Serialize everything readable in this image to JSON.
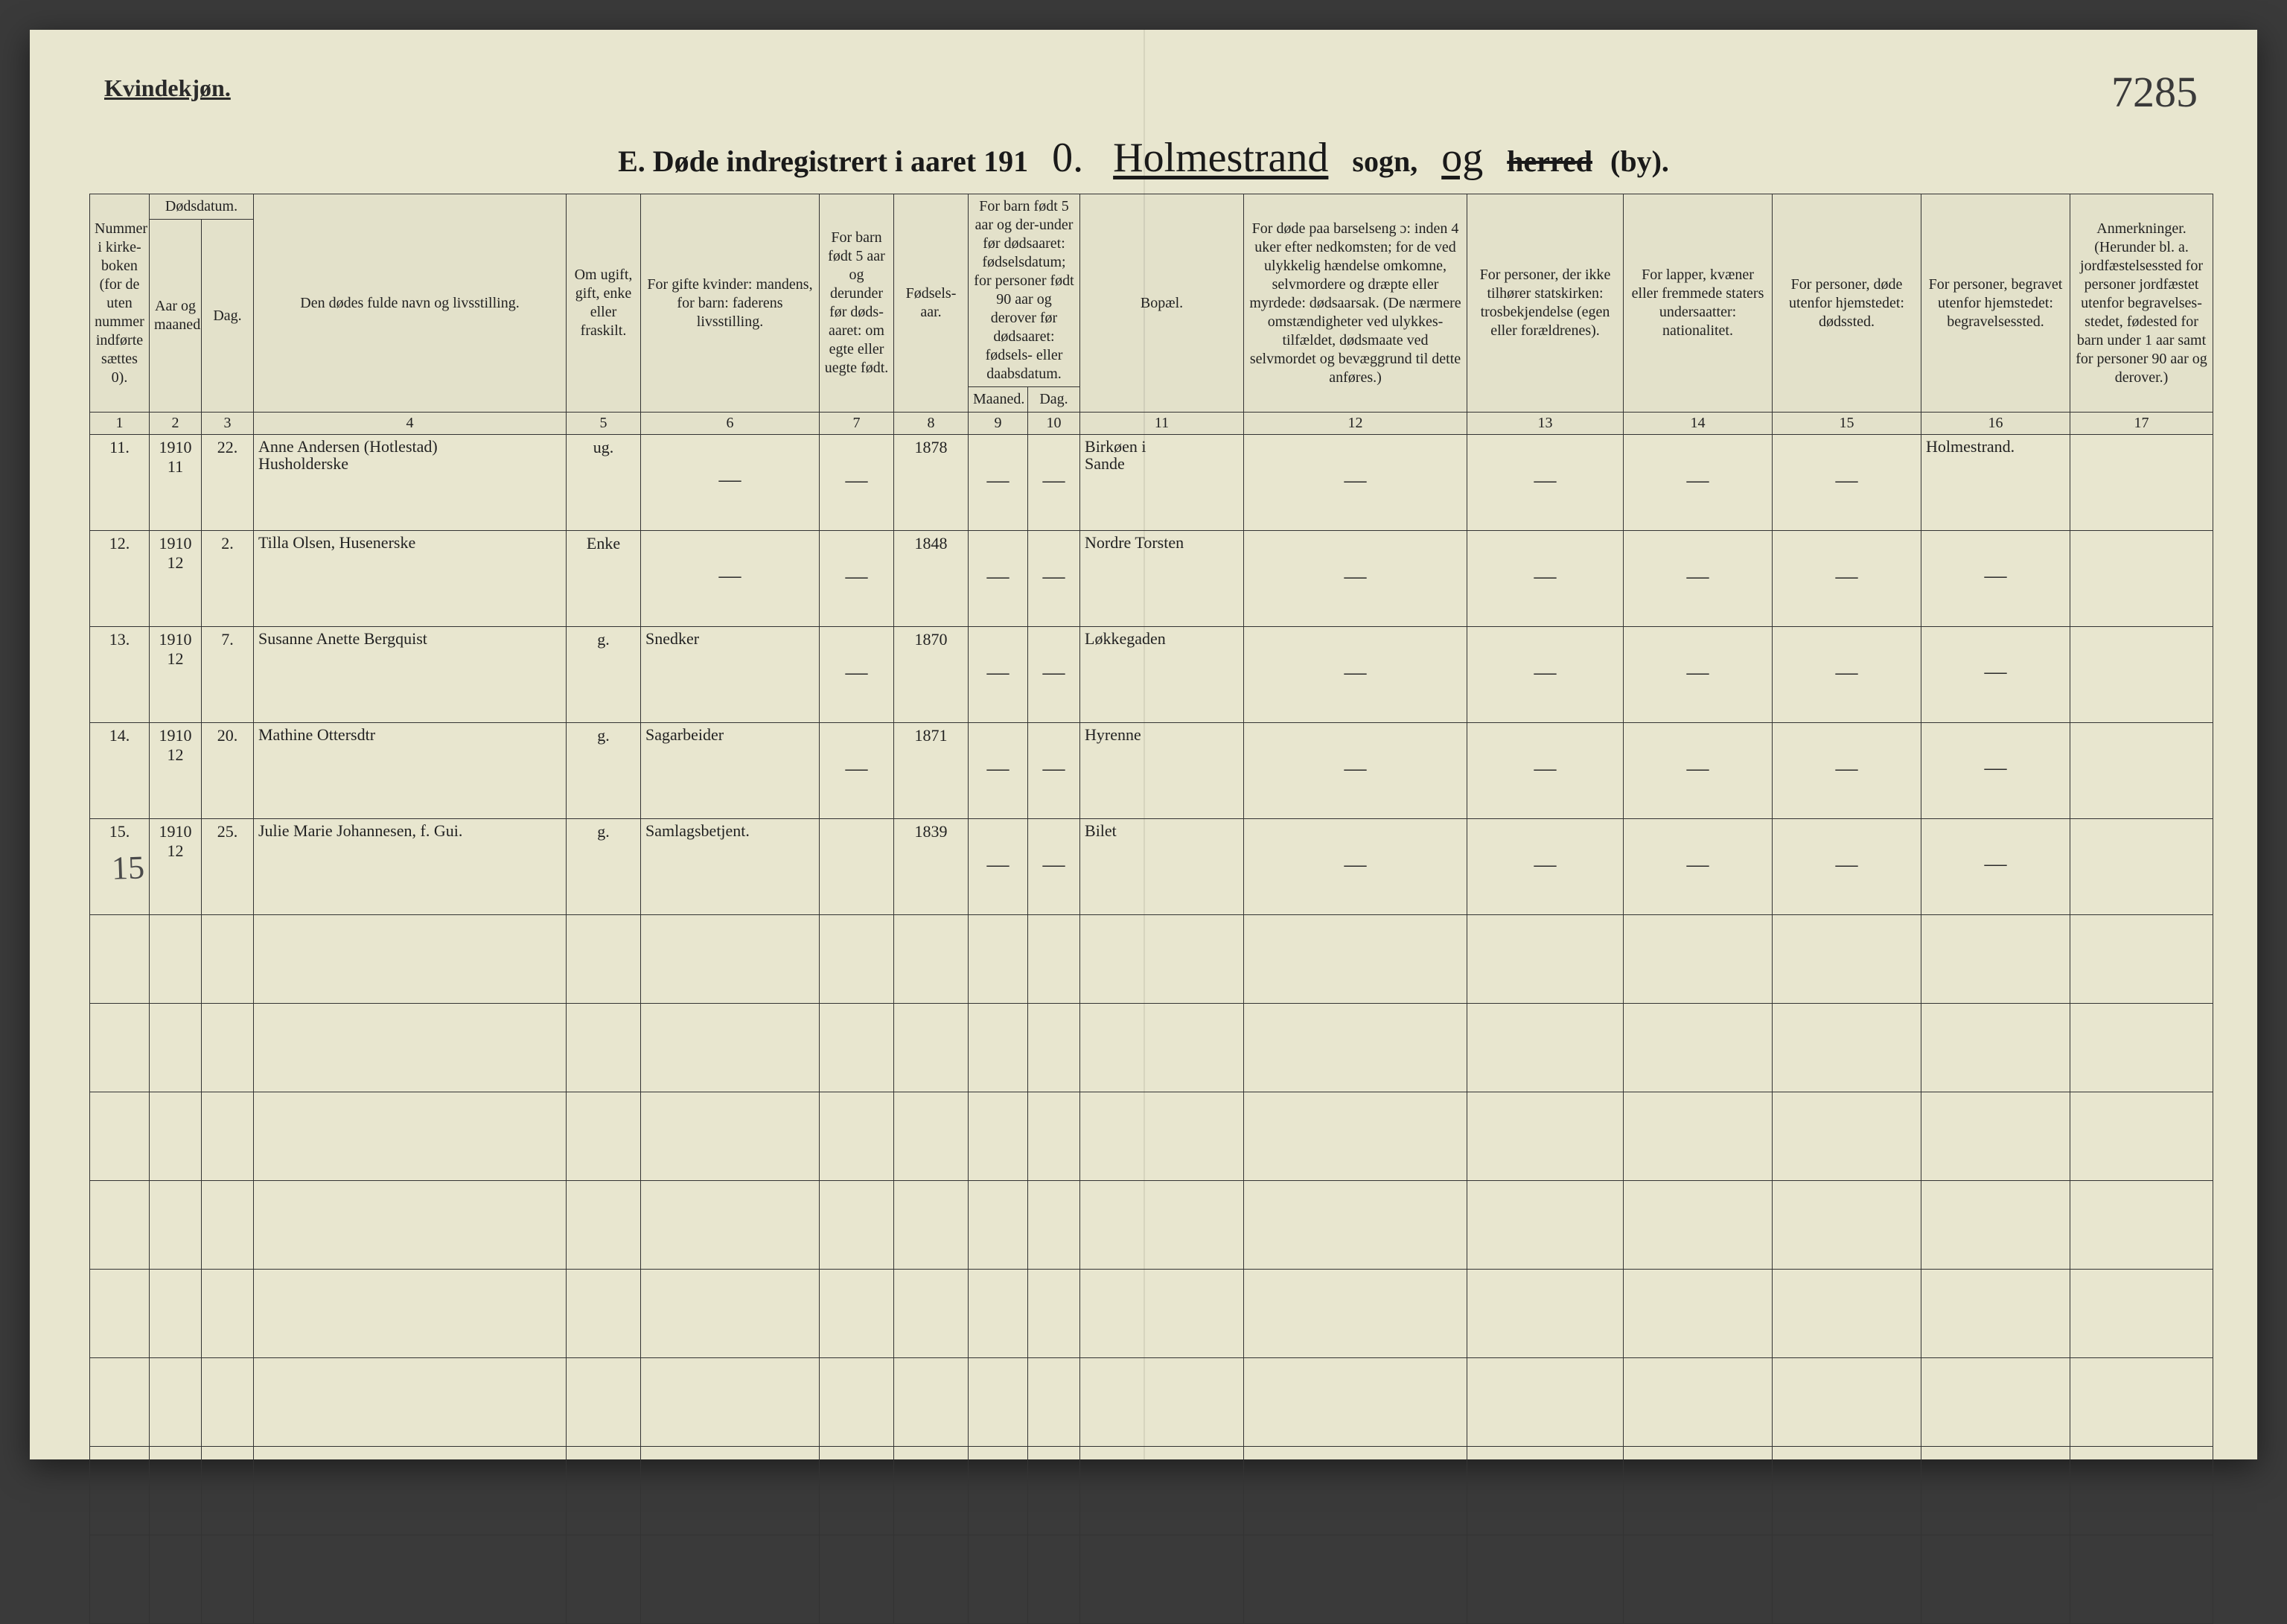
{
  "header": {
    "gender_heading": "Kvindekjøn.",
    "page_number_hand": "7285",
    "title_prefix": "E.   Døde indregistrert i aaret 191",
    "year_hand": "0.",
    "sogn_hand": "Holmestrand",
    "sogn_label": "sogn,",
    "og_hand": "og",
    "herred_label": "herred",
    "by_label": "(by)."
  },
  "column_headers": {
    "c1": "Nummer i kirke-boken (for de uten nummer indførte sættes 0).",
    "c2_group": "Dødsdatum.",
    "c2": "Aar og maaned.",
    "c3": "Dag.",
    "c4": "Den dødes fulde navn og livsstilling.",
    "c5": "Om ugift, gift, enke eller fraskilt.",
    "c6": "For gifte kvinder: mandens,\nfor barn: faderens livsstilling.",
    "c7": "For barn født 5 aar og derunder før døds-aaret: om egte eller uegte født.",
    "c8": "Fødsels-aar.",
    "c9_10_group": "For barn født 5 aar og der-under før dødsaaret: fødselsdatum; for personer født 90 aar og derover før dødsaaret: fødsels- eller daabsdatum.",
    "c9": "Maaned.",
    "c10": "Dag.",
    "c11": "Bopæl.",
    "c12": "For døde paa barselseng ɔ: inden 4 uker efter nedkomsten; for de ved ulykkelig hændelse omkomne, selvmordere og dræpte eller myrdede: dødsaarsak. (De nærmere omstændigheter ved ulykkes-tilfældet, dødsmaate ved selvmordet og bevæggrund til dette anføres.)",
    "c13": "For personer, der ikke tilhører statskirken: trosbekjendelse (egen eller forældrenes).",
    "c14": "For lapper, kvæner eller fremmede staters undersaatter: nationalitet.",
    "c15": "For personer, døde utenfor hjemstedet: dødssted.",
    "c16": "For personer, begravet utenfor hjemstedet: begravelsessted.",
    "c17": "Anmerkninger. (Herunder bl. a. jordfæstelsessted for personer jordfæstet utenfor begravelses-stedet, fødested for barn under 1 aar samt for personer 90 aar og derover.)"
  },
  "column_numbers": [
    "1",
    "2",
    "3",
    "4",
    "5",
    "6",
    "7",
    "8",
    "9",
    "10",
    "11",
    "12",
    "13",
    "14",
    "15",
    "16",
    "17"
  ],
  "rows": [
    {
      "num": "11.",
      "year_month": "1910\n11",
      "day": "22.",
      "name": "Anne Andersen (Hotlestad)\nHusholderske",
      "status": "ug.",
      "spouse": "—",
      "legit": "–",
      "birth_year": "1878",
      "bm": "–",
      "bd": "–",
      "residence": "Birkøen i\nSande",
      "col16": "Holmestrand."
    },
    {
      "num": "12.",
      "year_month": "1910\n12",
      "day": "2.",
      "name": "Tilla Olsen, Husenerske",
      "status": "Enke",
      "spouse": "—",
      "legit": "–",
      "birth_year": "1848",
      "bm": "–",
      "bd": "–",
      "residence": "Nordre Torsten",
      "col16": "—"
    },
    {
      "num": "13.",
      "year_month": "1910\n12",
      "day": "7.",
      "name": "Susanne Anette Bergquist",
      "status": "g.",
      "spouse": "Snedker",
      "legit": "–",
      "birth_year": "1870",
      "bm": "–",
      "bd": "–",
      "residence": "Løkkegaden",
      "col16": "–"
    },
    {
      "num": "14.",
      "year_month": "1910\n12",
      "day": "20.",
      "name": "Mathine Ottersdtr",
      "status": "g.",
      "spouse": "Sagarbeider",
      "legit": "–",
      "birth_year": "1871",
      "bm": "–",
      "bd": "–",
      "residence": "Hyrenne",
      "col16": "—"
    },
    {
      "num": "15.",
      "year_month": "1910\n12",
      "day": "25.",
      "name": "Julie Marie Johannesen, f. Gui.",
      "status": "g.",
      "spouse": "Samlagsbetjent.",
      "legit": "",
      "birth_year": "1839",
      "bm": "–",
      "bd": "–",
      "residence": "Bilet",
      "col16": "—"
    }
  ],
  "margin_note": "15",
  "style": {
    "page_bg": "#e8e6cf",
    "ink": "#2a2a2a",
    "border": "#333333",
    "empty_rows": 8
  }
}
